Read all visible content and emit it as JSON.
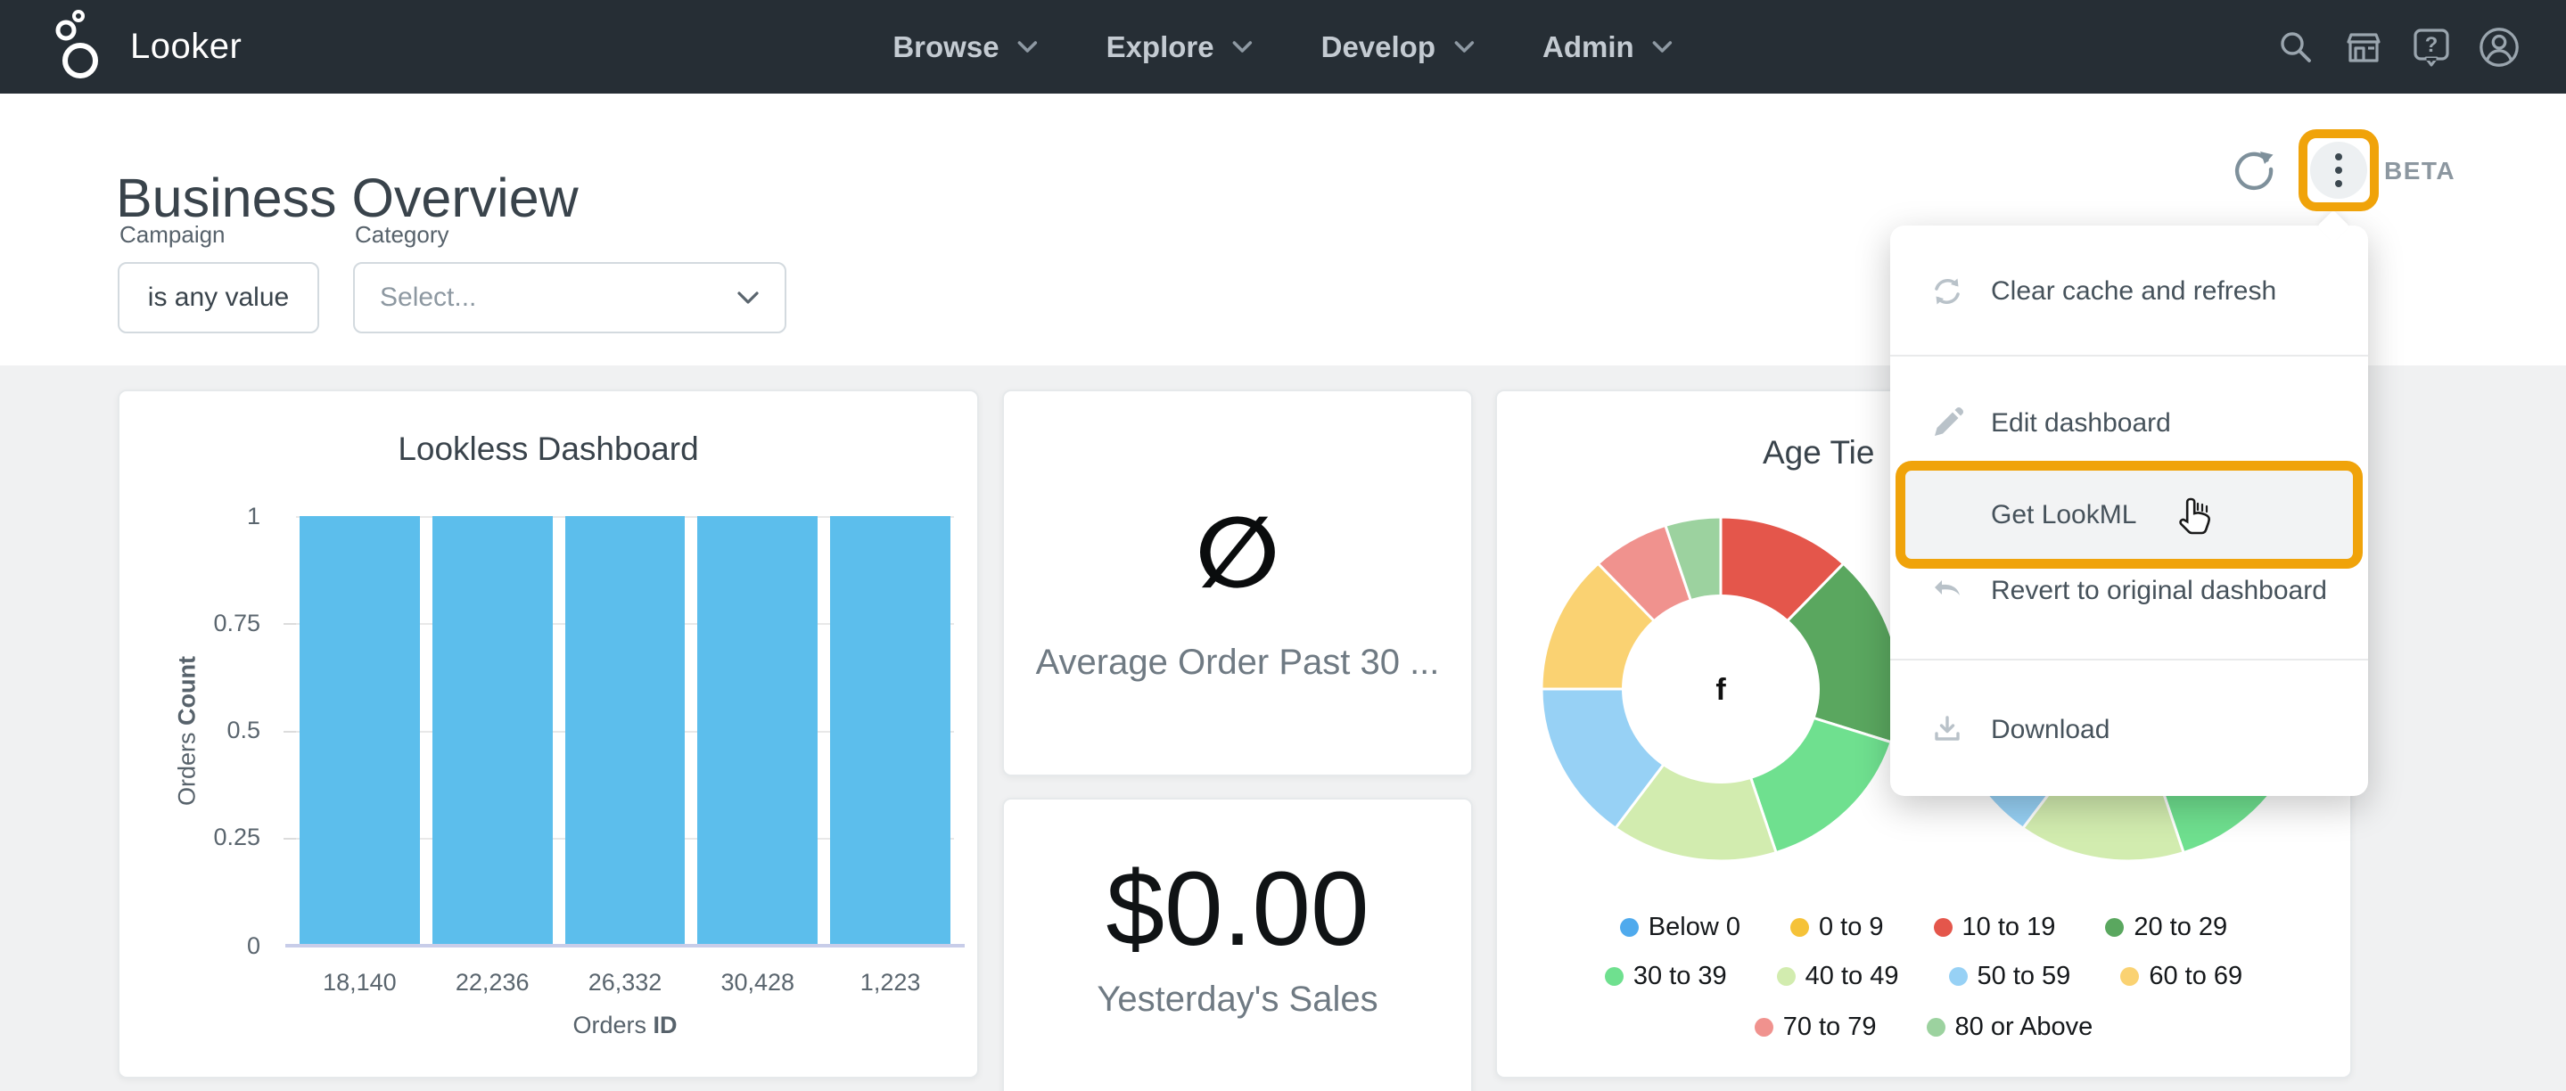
{
  "navbar": {
    "brand": "Looker",
    "menus": [
      {
        "label": "Browse"
      },
      {
        "label": "Explore"
      },
      {
        "label": "Develop"
      },
      {
        "label": "Admin"
      }
    ],
    "icons": [
      {
        "name": "search-icon"
      },
      {
        "name": "marketplace-icon"
      },
      {
        "name": "help-icon"
      },
      {
        "name": "account-icon"
      }
    ],
    "bg_color": "#262E35"
  },
  "header": {
    "title": "Business Overview",
    "beta_label": "BETA",
    "highlight_color": "#F0A30A"
  },
  "filters": {
    "campaign": {
      "label": "Campaign",
      "value": "is any value"
    },
    "category": {
      "label": "Category",
      "placeholder": "Select..."
    }
  },
  "context_menu": {
    "items": [
      {
        "label": "Clear cache and refresh",
        "icon": "sync-icon"
      },
      {
        "label": "Edit dashboard",
        "icon": "pencil-icon"
      },
      {
        "label": "Get LookML",
        "icon": "none",
        "highlighted": true
      },
      {
        "label": "Revert to original dashboard",
        "icon": "undo-icon"
      },
      {
        "label": "Download",
        "icon": "download-icon"
      }
    ]
  },
  "tiles": {
    "avg_order": {
      "symbol": "∅",
      "label": "Average Order Past 30 ..."
    },
    "sales": {
      "value": "$0.00",
      "label": "Yesterday's Sales"
    },
    "age_tier": {
      "title": "Age Tie",
      "center_label": "f"
    }
  },
  "chart_data": [
    {
      "type": "bar",
      "title": "Lookless Dashboard",
      "categories": [
        "18,140",
        "22,236",
        "26,332",
        "30,428",
        "1,223"
      ],
      "values": [
        1,
        1,
        1,
        1,
        1
      ],
      "xlabel": "Orders ID",
      "xlabel_regular": "Orders",
      "xlabel_bold": "ID",
      "ylabel": "Orders Count",
      "ylabel_regular": "Orders",
      "ylabel_bold": "Count",
      "ylim": [
        0,
        1
      ],
      "yticks": [
        "0",
        "0.25",
        "0.5",
        "0.75",
        "1"
      ],
      "bar_color": "#5CBEEC",
      "grid": true,
      "legend_position": "none"
    },
    {
      "type": "pie",
      "title": "Age Tie",
      "donut": true,
      "center_label": "f",
      "legend_position": "bottom",
      "segments": [
        {
          "label": "10 to 19",
          "pct": 12,
          "color": "#E4564B"
        },
        {
          "label": "20 to 29",
          "pct": 18,
          "color": "#5AA75F"
        },
        {
          "label": "30 to 39",
          "pct": 15,
          "color": "#6FE08F"
        },
        {
          "label": "40 to 49",
          "pct": 15,
          "color": "#D2ECAF"
        },
        {
          "label": "50 to 59",
          "pct": 15,
          "color": "#97D1F5"
        },
        {
          "label": "60 to 69",
          "pct": 13,
          "color": "#FAD272"
        },
        {
          "label": "70 to 79",
          "pct": 7,
          "color": "#F0928E"
        },
        {
          "label": "80 or Above",
          "pct": 5,
          "color": "#9CD29F"
        }
      ],
      "legend": [
        {
          "label": "Below 0",
          "color": "#4FAAED"
        },
        {
          "label": "0 to 9",
          "color": "#F5C238"
        },
        {
          "label": "10 to 19",
          "color": "#E4564B"
        },
        {
          "label": "20 to 29",
          "color": "#5AA75F"
        },
        {
          "label": "30 to 39",
          "color": "#6FE08F"
        },
        {
          "label": "40 to 49",
          "color": "#D2ECAF"
        },
        {
          "label": "50 to 59",
          "color": "#97D1F5"
        },
        {
          "label": "60 to 69",
          "color": "#FAD272"
        },
        {
          "label": "70 to 79",
          "color": "#F0928E"
        },
        {
          "label": "80 or Above",
          "color": "#9CD29F"
        }
      ]
    }
  ]
}
